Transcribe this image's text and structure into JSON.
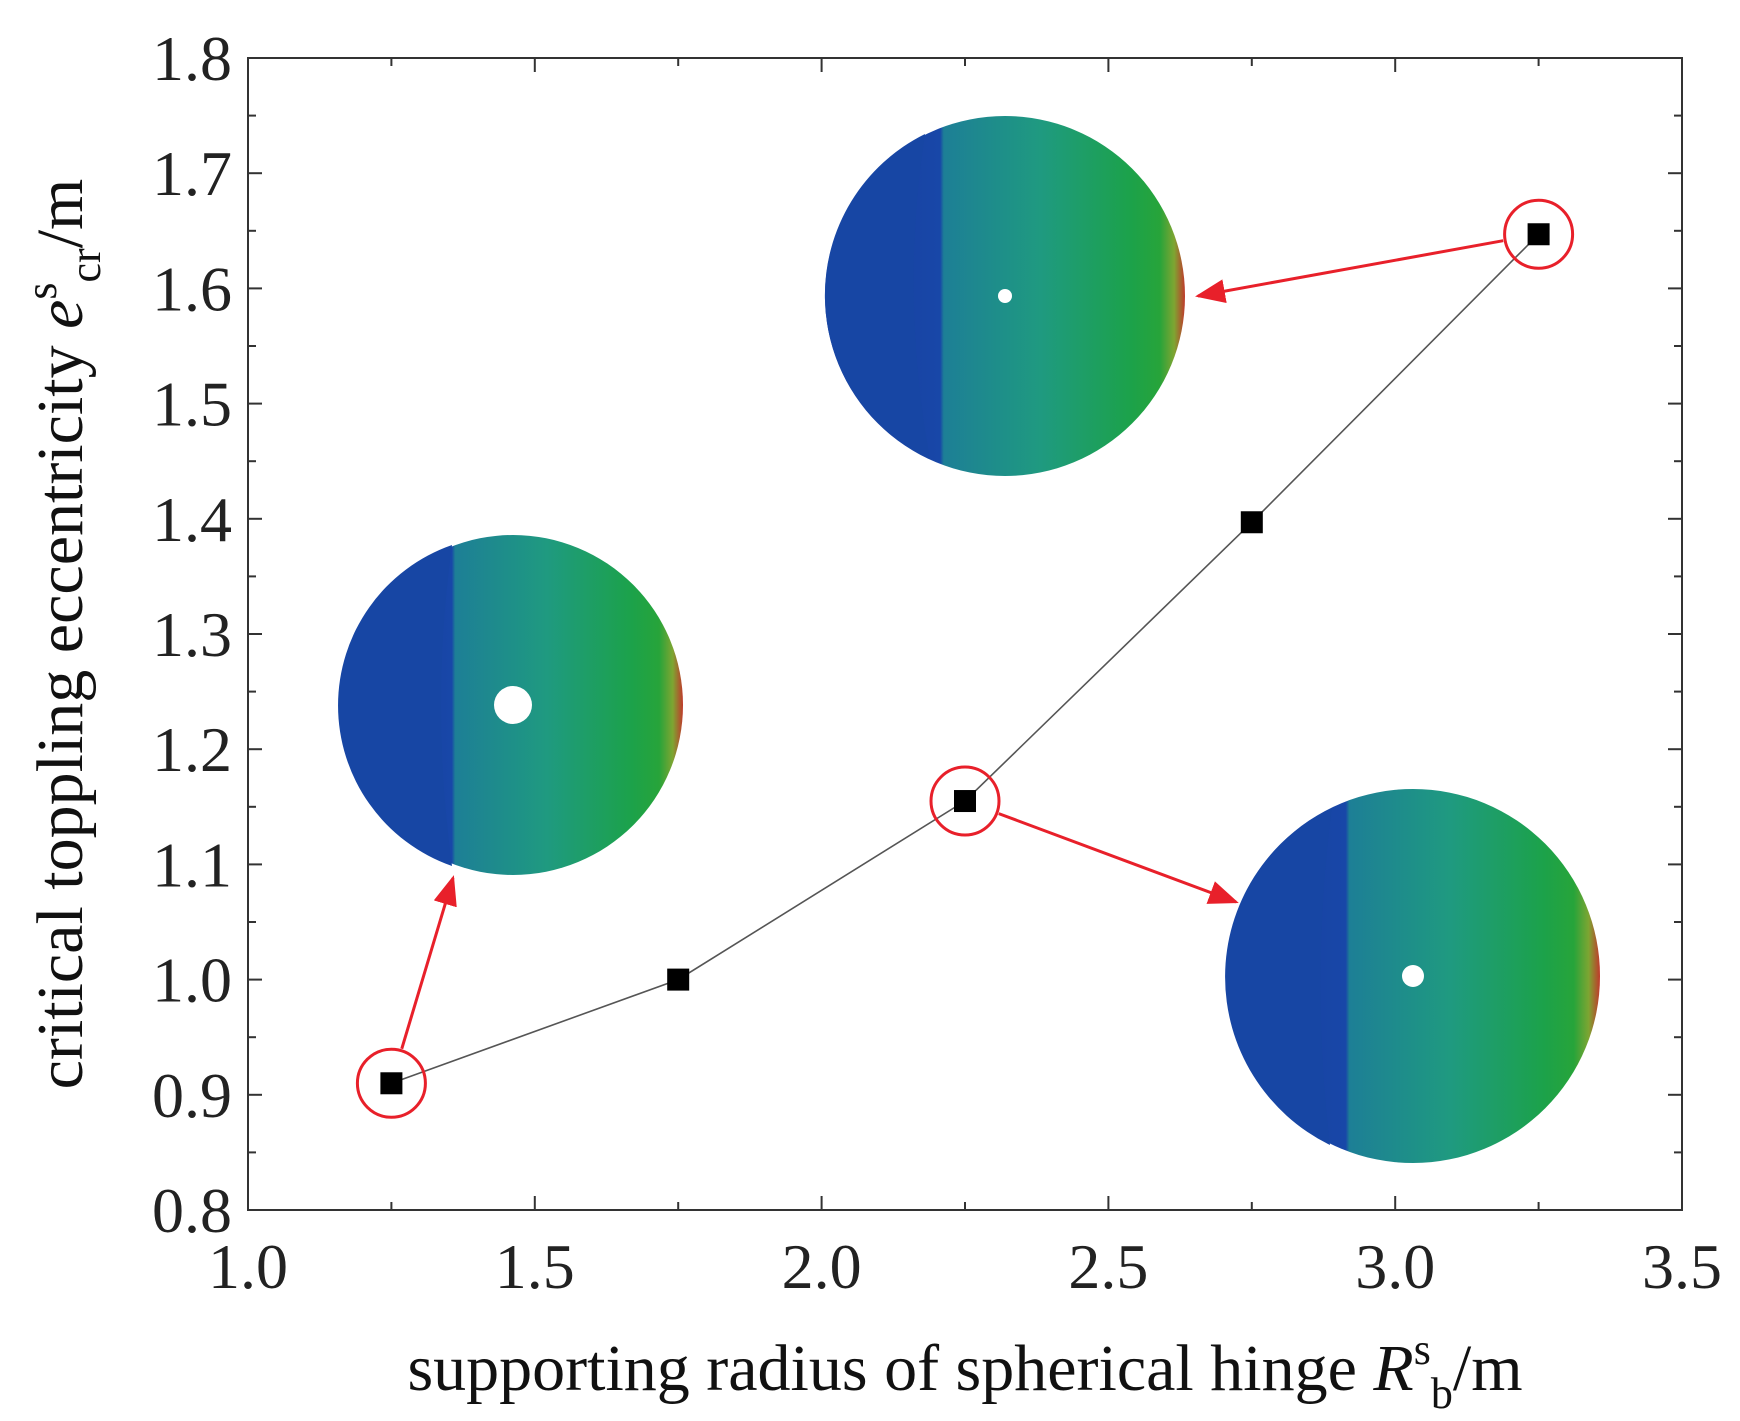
{
  "chart_data": {
    "type": "line",
    "xlabel": {
      "main": "supporting radius of spherical hinge",
      "symbol": "R",
      "sup": "s",
      "sub": "b",
      "unit": "/m"
    },
    "ylabel": {
      "main": "critical toppling eccentricity",
      "symbol": "e",
      "sup": "s",
      "sub": "cr",
      "unit": "/m"
    },
    "xlim": [
      1.0,
      3.5
    ],
    "ylim": [
      0.8,
      1.8
    ],
    "xticks": [
      "1.0",
      "1.5",
      "2.0",
      "2.5",
      "3.0",
      "3.5"
    ],
    "yticks": [
      "0.8",
      "0.9",
      "1.0",
      "1.1",
      "1.2",
      "1.3",
      "1.4",
      "1.5",
      "1.6",
      "1.7",
      "1.8"
    ],
    "series": [
      {
        "name": "critical toppling eccentricity",
        "marker": "square",
        "x": [
          1.25,
          1.75,
          2.25,
          2.75,
          3.25
        ],
        "y": [
          0.91,
          1.0,
          1.155,
          1.397,
          1.647
        ]
      }
    ],
    "highlighted_points": [
      0,
      2,
      4
    ],
    "insets": [
      {
        "name": "contour-disc-small",
        "linked_point": 0,
        "hole": "large"
      },
      {
        "name": "contour-disc-medium",
        "linked_point": 2,
        "hole": "small"
      },
      {
        "name": "contour-disc-large",
        "linked_point": 4,
        "hole": "small"
      }
    ],
    "colors": {
      "line": "#555555",
      "marker": "#000000",
      "highlight": "#e8202a",
      "contour_blue": "#1747a6",
      "contour_teal": "#1f9a86",
      "contour_green": "#1ca24a",
      "contour_red": "#c0392b"
    }
  }
}
